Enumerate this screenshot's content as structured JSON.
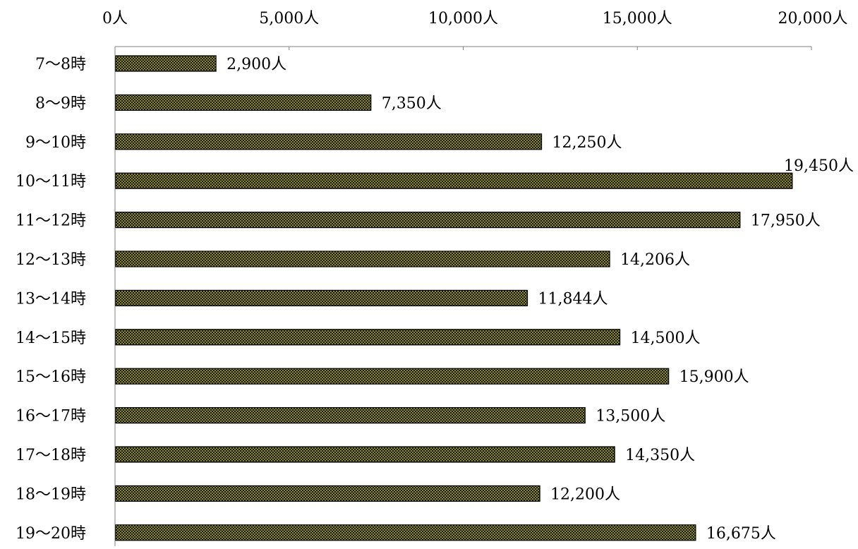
{
  "chart_data": {
    "type": "bar",
    "orientation": "horizontal",
    "categories": [
      "7～8時",
      "8～9時",
      "9～10時",
      "10～11時",
      "11～12時",
      "12～13時",
      "13～14時",
      "14～15時",
      "15～16時",
      "16～17時",
      "17～18時",
      "18～19時",
      "19～20時"
    ],
    "values": [
      2900,
      7350,
      12250,
      19450,
      17950,
      14206,
      11844,
      14500,
      15900,
      13500,
      14350,
      12200,
      16675
    ],
    "data_labels": [
      "2,900人",
      "7,350人",
      "12,250人",
      "19,450人",
      "17,950人",
      "14,206人",
      "11,844人",
      "14,500人",
      "15,900人",
      "13,500人",
      "14,350人",
      "12,200人",
      "16,675人"
    ],
    "xlim": [
      0,
      20000
    ],
    "x_ticks": [
      0,
      5000,
      10000,
      15000,
      20000
    ],
    "x_tick_labels": [
      "0人",
      "5,000人",
      "10,000人",
      "15,000人",
      "20,000人"
    ],
    "x_axis_position": "top",
    "grid": false,
    "legend": "none",
    "title": "",
    "xlabel": "",
    "ylabel": "",
    "bar_fill_color": "#1a1a00",
    "bar_pattern_color": "#d8d470"
  }
}
